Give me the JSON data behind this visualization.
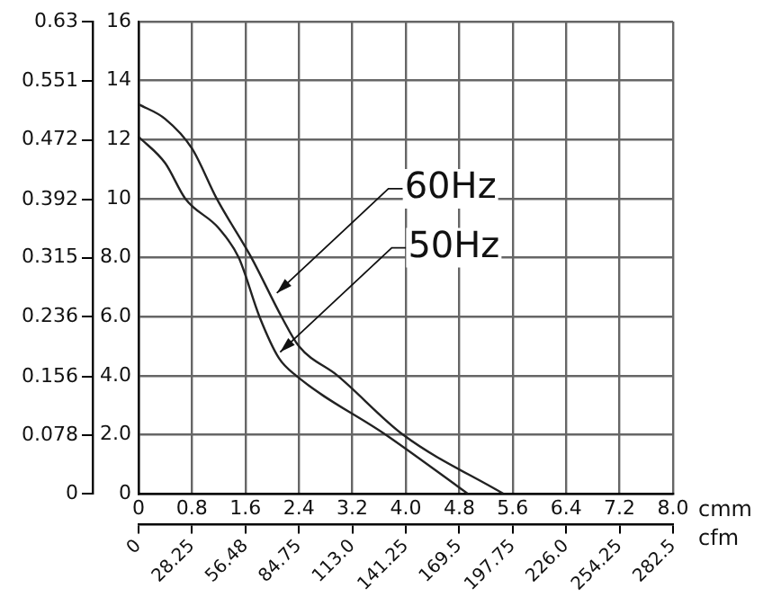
{
  "chart_data": {
    "type": "line",
    "xlabel": "cmm",
    "x2label": "cfm",
    "xlim": [
      0,
      8
    ],
    "xticks": [
      0,
      0.8,
      1.6,
      2.4,
      3.2,
      {
        "value": 4,
        "label": "4.0"
      },
      4.8,
      5.6,
      6.4,
      7.2,
      {
        "value": 8,
        "label": "8.0"
      }
    ],
    "x2lim": [
      0,
      282.5
    ],
    "x2ticks": [
      0,
      28.25,
      56.48,
      84.75,
      {
        "value": 113,
        "label": "113.0"
      },
      141.25,
      169.5,
      197.75,
      {
        "value": 226,
        "label": "226.0"
      },
      254.25,
      282.5
    ],
    "ylim": [
      0,
      16
    ],
    "yticks": [
      0,
      {
        "value": 2,
        "label": "2.0"
      },
      {
        "value": 4,
        "label": "4.0"
      },
      {
        "value": 6,
        "label": "6.0"
      },
      {
        "value": 8,
        "label": "8.0"
      },
      10,
      12,
      14,
      16
    ],
    "y2lim": [
      0,
      0.63
    ],
    "y2ticks": [
      0,
      0.078,
      0.156,
      0.236,
      0.315,
      0.392,
      0.472,
      0.551,
      0.63
    ],
    "series": [
      {
        "color": "#222222",
        "x": [
          0,
          0.4,
          0.8,
          1.17,
          1.69,
          2.14,
          2.4,
          2.98,
          3.96,
          5.46
        ],
        "values": [
          13.2,
          12.7,
          11.7,
          10,
          8,
          6,
          5,
          4,
          2,
          0
        ]
      },
      {
        "color": "#222222",
        "x": [
          0,
          0.4,
          0.7,
          1.2,
          1.5,
          1.81,
          2.1,
          2.36,
          3.7,
          4.93
        ],
        "values": [
          12.1,
          11.2,
          10,
          9,
          8,
          6,
          4.6,
          4,
          2,
          0
        ]
      }
    ],
    "annotations": [
      {
        "text": "60Hz",
        "x": 2.07,
        "y": 6.8
      },
      {
        "text": "50Hz",
        "x": 2.12,
        "y": 4.8
      }
    ],
    "grid": true,
    "legend": false,
    "marker": "none",
    "line_style": "solid"
  }
}
